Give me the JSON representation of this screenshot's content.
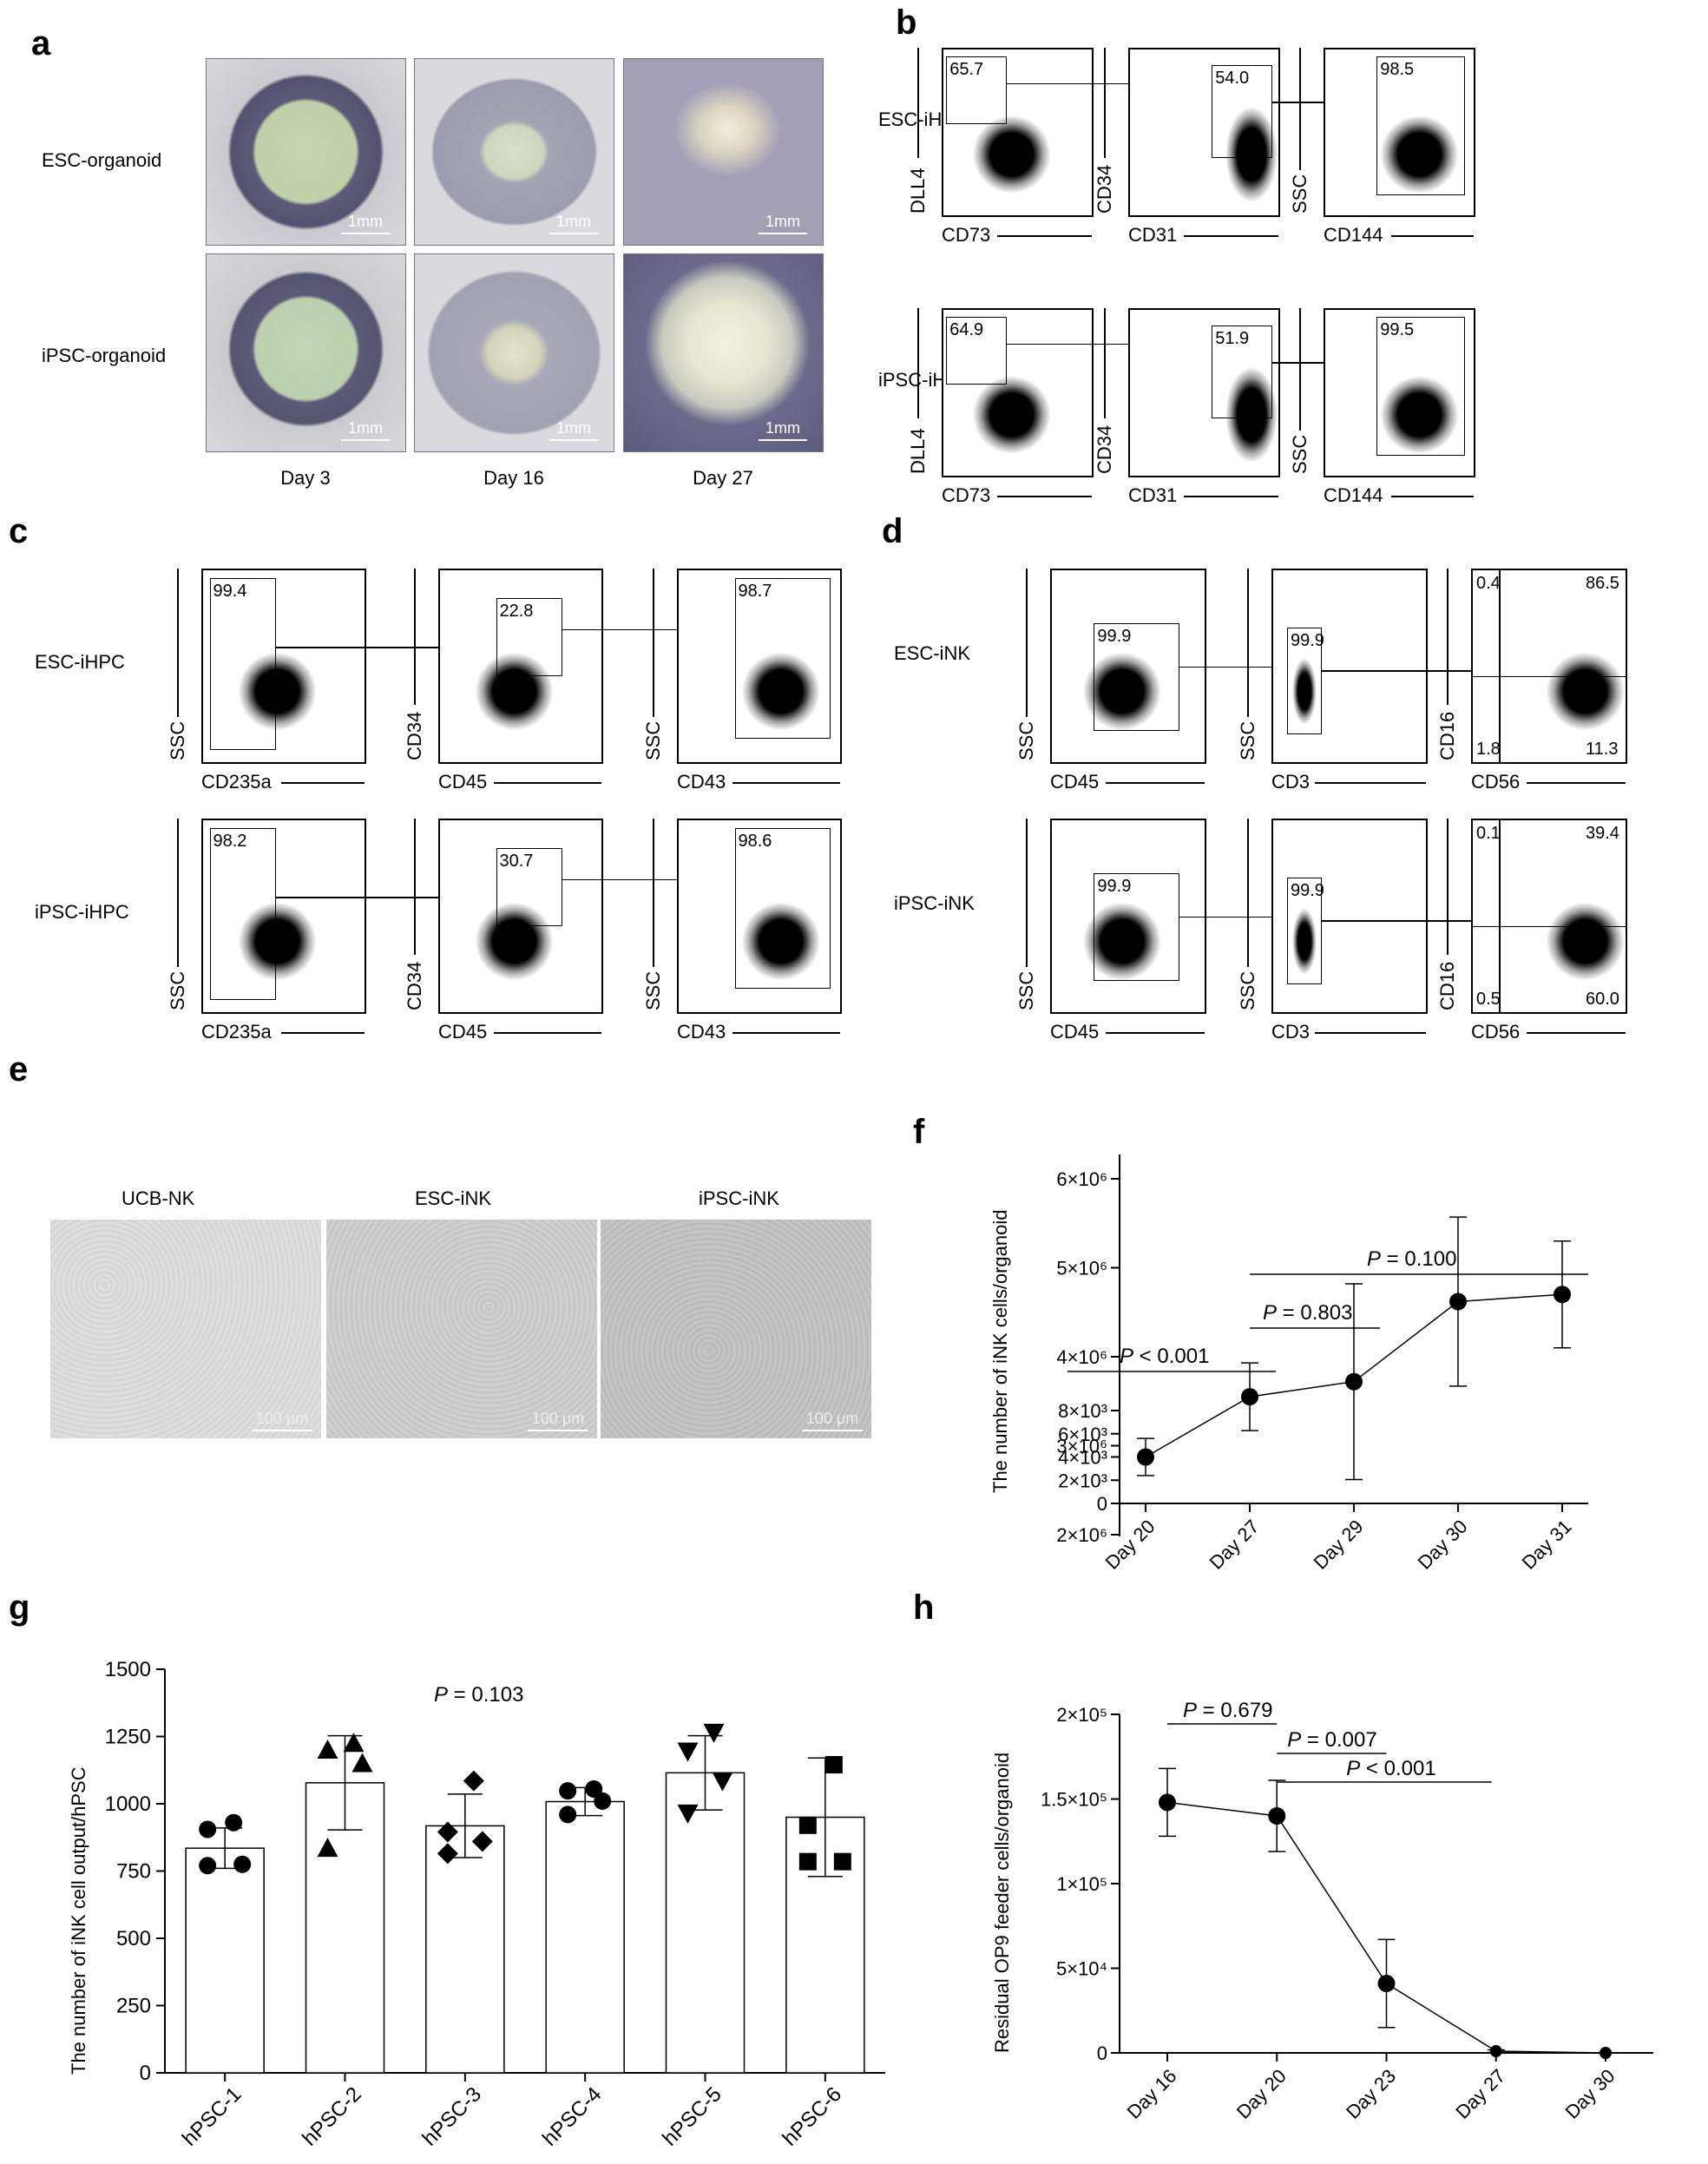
{
  "panels": {
    "a": "a",
    "b": "b",
    "c": "c",
    "d": "d",
    "e": "e",
    "f": "f",
    "g": "g",
    "h": "h"
  },
  "panel_a": {
    "rows": [
      "ESC-organoid",
      "iPSC-organoid"
    ],
    "days": [
      "Day 3",
      "Day 16",
      "Day 27"
    ],
    "scale": "1mm"
  },
  "panel_b": {
    "rows": [
      {
        "label": "ESC-iHEC",
        "plots": [
          {
            "x": "CD73",
            "y": "DLL4",
            "value": "65.7"
          },
          {
            "x": "CD31",
            "y": "CD34",
            "value": "54.0"
          },
          {
            "x": "CD144",
            "y": "SSC",
            "value": "98.5"
          }
        ]
      },
      {
        "label": "iPSC-iHEC",
        "plots": [
          {
            "x": "CD73",
            "y": "DLL4",
            "value": "64.9"
          },
          {
            "x": "CD31",
            "y": "CD34",
            "value": "51.9"
          },
          {
            "x": "CD144",
            "y": "SSC",
            "value": "99.5"
          }
        ]
      }
    ]
  },
  "panel_c": {
    "rows": [
      {
        "label": "ESC-iHPC",
        "plots": [
          {
            "x": "CD235a",
            "y": "SSC",
            "value": "99.4"
          },
          {
            "x": "CD45",
            "y": "CD34",
            "value": "22.8"
          },
          {
            "x": "CD43",
            "y": "SSC",
            "value": "98.7"
          }
        ]
      },
      {
        "label": "iPSC-iHPC",
        "plots": [
          {
            "x": "CD235a",
            "y": "SSC",
            "value": "98.2"
          },
          {
            "x": "CD45",
            "y": "CD34",
            "value": "30.7"
          },
          {
            "x": "CD43",
            "y": "SSC",
            "value": "98.6"
          }
        ]
      }
    ]
  },
  "panel_d": {
    "rows": [
      {
        "label": "ESC-iNK",
        "plots": [
          {
            "x": "CD45",
            "y": "SSC",
            "value": "99.9"
          },
          {
            "x": "CD3",
            "y": "SSC",
            "value": "99.9"
          },
          {
            "x": "CD56",
            "y": "CD16",
            "quadrants": {
              "ul": "0.4",
              "ur": "86.5",
              "ll": "1.8",
              "lr": "11.3"
            }
          }
        ]
      },
      {
        "label": "iPSC-iNK",
        "plots": [
          {
            "x": "CD45",
            "y": "SSC",
            "value": "99.9"
          },
          {
            "x": "CD3",
            "y": "SSC",
            "value": "99.9"
          },
          {
            "x": "CD56",
            "y": "CD16",
            "quadrants": {
              "ul": "0.1",
              "ur": "39.4",
              "ll": "0.5",
              "lr": "60.0"
            }
          }
        ]
      }
    ]
  },
  "panel_e": {
    "labels": [
      "UCB-NK",
      "ESC-iNK",
      "iPSC-iNK"
    ],
    "scale": "100 μm"
  },
  "chart_data": [
    {
      "panel": "f",
      "type": "line",
      "categories": [
        "Day 20",
        "Day 27",
        "Day 29",
        "Day 30",
        "Day 31"
      ],
      "values": [
        4000,
        3550000,
        3720000,
        4620000,
        4700000
      ],
      "errors": [
        1600,
        380000,
        1100000,
        950000,
        600000
      ],
      "ylabel": "The  number of iNK cells/organoid",
      "yticks_upper": [
        "2×10⁶",
        "3×10⁶",
        "4×10⁶",
        "5×10⁶",
        "6×10⁶"
      ],
      "yticks_lower": [
        "0",
        "2×10³",
        "4×10³",
        "6×10³",
        "8×10³"
      ],
      "annotations": [
        {
          "text": "P < 0.001",
          "from": "Day 20",
          "to": "Day 27"
        },
        {
          "text": "P = 0.803",
          "from": "Day 27",
          "to": "Day 29"
        },
        {
          "text": "P = 0.100",
          "from": "Day 27",
          "to": "Day 31"
        }
      ]
    },
    {
      "panel": "g",
      "type": "bar",
      "categories": [
        "hPSC-1",
        "hPSC-2",
        "hPSC-3",
        "hPSC-4",
        "hPSC-5",
        "hPSC-6"
      ],
      "values": [
        835,
        1078,
        918,
        1008,
        1115,
        950
      ],
      "errors": [
        75,
        175,
        118,
        52,
        138,
        220
      ],
      "points": [
        [
          930,
          905,
          775,
          770
        ],
        [
          1225,
          1200,
          1150,
          835
        ],
        [
          1085,
          895,
          860,
          815
        ],
        [
          1055,
          1048,
          1010,
          960
        ],
        [
          1265,
          1195,
          1085,
          965
        ],
        [
          1145,
          920,
          785,
          785
        ]
      ],
      "markers": [
        "circle",
        "triangle-up",
        "diamond",
        "circle",
        "triangle-down",
        "square"
      ],
      "ylabel": "The  number of iNK cell output/hPSC",
      "ylim": [
        0,
        1500
      ],
      "yticks": [
        0,
        250,
        500,
        750,
        1000,
        1250,
        1500
      ],
      "annotation": "P = 0.103"
    },
    {
      "panel": "h",
      "type": "line",
      "categories": [
        "Day 16",
        "Day 20",
        "Day 23",
        "Day 27",
        "Day 30"
      ],
      "values": [
        148000,
        140000,
        41000,
        1000,
        0
      ],
      "errors": [
        20000,
        21000,
        26000,
        800,
        0
      ],
      "ylabel": "Residual OP9 feeder cells/organoid",
      "ylim": [
        0,
        200000
      ],
      "yticks": [
        "0",
        "5×10⁴",
        "1×10⁵",
        "1.5×10⁵",
        "2×10⁵"
      ],
      "annotations": [
        {
          "text": "P = 0.679",
          "from": "Day 16",
          "to": "Day 20"
        },
        {
          "text": "P = 0.007",
          "from": "Day 20",
          "to": "Day 23"
        },
        {
          "text": "P < 0.001",
          "from": "Day 20",
          "to": "Day 27"
        }
      ]
    }
  ]
}
